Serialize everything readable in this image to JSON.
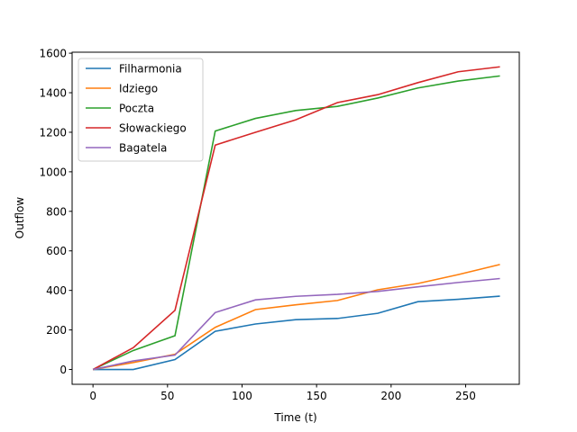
{
  "chart_data": {
    "type": "line",
    "title": "",
    "xlabel": "Time (t)",
    "ylabel": "Outflow",
    "xlim": [
      -14,
      286
    ],
    "ylim": [
      -75,
      1605
    ],
    "xticks": [
      0,
      50,
      100,
      150,
      200,
      250
    ],
    "yticks": [
      0,
      200,
      400,
      600,
      800,
      1000,
      1200,
      1400,
      1600
    ],
    "grid": false,
    "legend_position": "top-left",
    "x": [
      0,
      27,
      55,
      82,
      109,
      136,
      164,
      191,
      218,
      245,
      273
    ],
    "series": [
      {
        "name": "Filharmonia",
        "color": "#1f77b4",
        "values": [
          0,
          0,
          50,
          193,
          230,
          252,
          258,
          284,
          343,
          355,
          371
        ]
      },
      {
        "name": "Idziego",
        "color": "#ff7f0e",
        "values": [
          0,
          35,
          77,
          213,
          303,
          327,
          349,
          403,
          435,
          480,
          531
        ]
      },
      {
        "name": "Poczta",
        "color": "#2ca02c",
        "values": [
          0,
          96,
          171,
          1206,
          1270,
          1310,
          1331,
          1373,
          1424,
          1459,
          1485
        ]
      },
      {
        "name": "Słowackiego",
        "color": "#d62728",
        "values": [
          0,
          110,
          299,
          1135,
          1200,
          1263,
          1350,
          1390,
          1451,
          1506,
          1531
        ]
      },
      {
        "name": "Bagatela",
        "color": "#9467bd",
        "values": [
          0,
          43,
          73,
          288,
          352,
          370,
          380,
          395,
          418,
          440,
          460
        ]
      }
    ]
  }
}
